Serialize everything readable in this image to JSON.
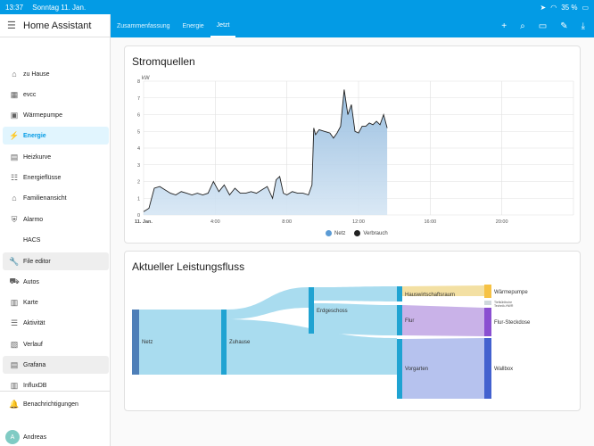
{
  "status_bar": {
    "time": "13:37",
    "date": "Sonntag 11. Jan.",
    "battery": "35 %"
  },
  "sidebar": {
    "title": "Home Assistant",
    "items": [
      {
        "label": "zu Hause",
        "icon": "sofa-icon"
      },
      {
        "label": "evcc",
        "icon": "grid-icon"
      },
      {
        "label": "Wärmepumpe",
        "icon": "cube-icon"
      },
      {
        "label": "Energie",
        "icon": "lightning-icon"
      },
      {
        "label": "Heizkurve",
        "icon": "dashboard-icon"
      },
      {
        "label": "Energieflüsse",
        "icon": "list-icon"
      },
      {
        "label": "Familienansicht",
        "icon": "home-icon"
      },
      {
        "label": "Alarmo",
        "icon": "shield-icon"
      },
      {
        "label": "HACS",
        "icon": "hacs-icon"
      },
      {
        "label": "File editor",
        "icon": "wrench-icon"
      },
      {
        "label": "Autos",
        "icon": "car-icon"
      },
      {
        "label": "Karte",
        "icon": "map-icon"
      },
      {
        "label": "Aktivität",
        "icon": "list-icon"
      },
      {
        "label": "Verlauf",
        "icon": "chart-bar-icon"
      },
      {
        "label": "Grafana",
        "icon": "chart-icon"
      },
      {
        "label": "InfluxDB",
        "icon": "chart-icon"
      }
    ],
    "notifications": "Benachrichtigungen",
    "user": "Andreas",
    "avatar_initial": "A"
  },
  "topbar": {
    "tabs": [
      "Zusammenfassung",
      "Energie",
      "Jetzt"
    ],
    "active_tab": "Jetzt"
  },
  "stromquellen": {
    "title": "Stromquellen",
    "chart_data": {
      "type": "area",
      "ylabel": "kW",
      "ylim": [
        0,
        8
      ],
      "y_ticks": [
        "0",
        "1",
        "2",
        "3",
        "4",
        "5",
        "6",
        "7",
        "8"
      ],
      "x_ticks": [
        "11. Jan.",
        "4:00",
        "8:00",
        "12:00",
        "16:00",
        "20:00"
      ],
      "x_tick_hours": [
        0,
        4,
        8,
        12,
        16,
        20
      ],
      "xlim_hours": [
        0,
        24
      ],
      "legend": [
        "Netz",
        "Verbrauch"
      ],
      "colors": {
        "Netz": "#5b9bd5",
        "Verbrauch": "#212121"
      },
      "series": [
        {
          "name": "Verbrauch",
          "x": [
            0,
            0.3,
            0.6,
            0.9,
            1.2,
            1.5,
            1.8,
            2.1,
            2.4,
            2.7,
            3.0,
            3.3,
            3.6,
            3.9,
            4.2,
            4.5,
            4.8,
            5.1,
            5.4,
            5.7,
            6.0,
            6.3,
            6.6,
            6.9,
            7.2,
            7.4,
            7.6,
            7.8,
            8.0,
            8.3,
            8.6,
            8.9,
            9.2,
            9.4,
            9.5,
            9.6,
            9.8,
            10.1,
            10.4,
            10.6,
            10.8,
            11.0,
            11.2,
            11.4,
            11.6,
            11.8,
            12.0,
            12.2,
            12.4,
            12.6,
            12.8,
            13.0,
            13.2,
            13.4,
            13.6
          ],
          "y": [
            0.2,
            0.4,
            1.6,
            1.7,
            1.5,
            1.3,
            1.2,
            1.4,
            1.3,
            1.2,
            1.3,
            1.2,
            1.3,
            2.0,
            1.4,
            1.8,
            1.2,
            1.6,
            1.3,
            1.3,
            1.4,
            1.3,
            1.5,
            1.7,
            1.0,
            2.1,
            2.3,
            1.3,
            1.2,
            1.4,
            1.3,
            1.3,
            1.2,
            1.8,
            5.2,
            4.8,
            5.1,
            5.0,
            4.9,
            4.6,
            4.9,
            5.3,
            7.5,
            6.0,
            6.6,
            5.0,
            4.9,
            5.3,
            5.3,
            5.5,
            5.4,
            5.6,
            5.4,
            6.0,
            5.2
          ]
        }
      ]
    },
    "legend": {
      "netz": "Netz",
      "verbrauch": "Verbrauch"
    }
  },
  "leistungsfluss": {
    "title": "Aktueller Leistungsfluss",
    "nodes": {
      "netz": "Netz",
      "zuhause": "Zuhause",
      "erdgeschoss": "Erdgeschoss",
      "hauswirtschaftsraum": "Hauswirtschaftsraum",
      "flur": "Flur",
      "vorgarten": "Vorgarten",
      "waermepumpe": "Wärmepumpe",
      "tertiary1": "Tiefkühltruhe",
      "tertiary2": "Technik-HWR",
      "flur_steckdose": "Flur-Steckdose",
      "wallbox": "Wallbox"
    },
    "colors": {
      "source": "#4e7fb8",
      "hub": "#1fa3d2",
      "link": "#a9dcef",
      "waermepumpe": "#f6c244",
      "steckdose": "#8a4fd1",
      "wallbox": "#4361cf"
    }
  }
}
